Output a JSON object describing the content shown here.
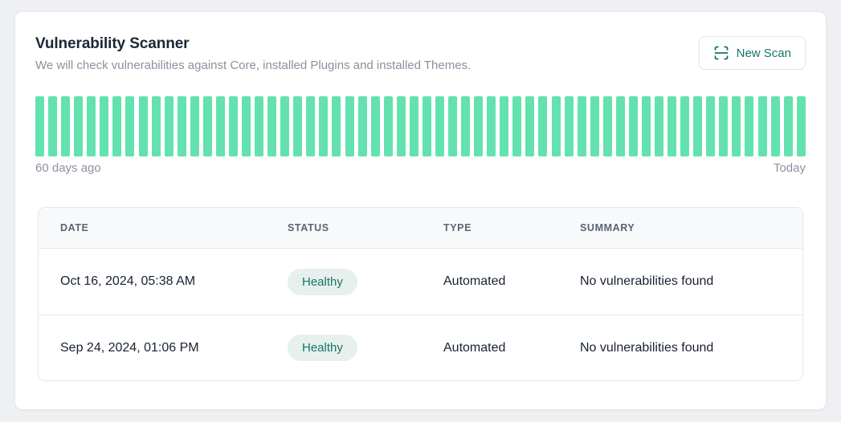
{
  "colors": {
    "page_bg": "#eef0f3",
    "card_bg": "#ffffff",
    "card_border": "#e7e9ec",
    "button_border": "#e2e6ea",
    "title_text": "#1c2636",
    "muted": "#8a919e",
    "teal": "#17756a",
    "bar_green": "#63e2af",
    "badge_bg": "#e7f0ec",
    "table_border": "#e6e8eb",
    "table_header_bg": "#f8f9fb",
    "table_header_text": "#5b6574",
    "cell_text": "#182230"
  },
  "header": {
    "title": "Vulnerability Scanner",
    "subtitle": "We will check vulnerabilities against Core, installed Plugins and installed Themes.",
    "new_scan_label": "New Scan",
    "new_scan_icon": "scan-icon"
  },
  "timeline": {
    "bar_count": 60,
    "left_label": "60 days ago",
    "right_label": "Today"
  },
  "table": {
    "columns": [
      "DATE",
      "STATUS",
      "TYPE",
      "SUMMARY"
    ],
    "rows": [
      {
        "date": "Oct 16, 2024, 05:38 AM",
        "status": "Healthy",
        "type": "Automated",
        "summary": "No vulnerabilities found"
      },
      {
        "date": "Sep 24, 2024, 01:06 PM",
        "status": "Healthy",
        "type": "Automated",
        "summary": "No vulnerabilities found"
      }
    ]
  }
}
